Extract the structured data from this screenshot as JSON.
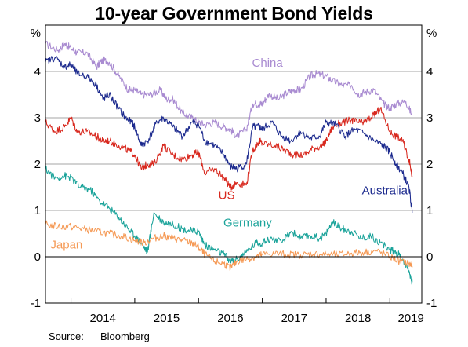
{
  "chart_data": {
    "type": "line",
    "title": "10-year Government Bond Yields",
    "ylabel_left": "%",
    "ylabel_right": "%",
    "ylim": [
      -1,
      5
    ],
    "yticks": [
      -1,
      0,
      1,
      2,
      3,
      4
    ],
    "xlim": [
      2013.6,
      2019.5
    ],
    "xticks": [
      "2014",
      "2015",
      "2016",
      "2017",
      "2018",
      "2019"
    ],
    "grid": true,
    "source_label": "Source:",
    "source": "Bloomberg",
    "series": [
      {
        "name": "China",
        "color": "#a98bd1",
        "x": [
          2013.6,
          2013.8,
          2013.9,
          2014.0,
          2014.1,
          2014.25,
          2014.4,
          2014.5,
          2014.6,
          2014.75,
          2014.9,
          2015.0,
          2015.1,
          2015.25,
          2015.4,
          2015.5,
          2015.6,
          2015.75,
          2015.9,
          2016.0,
          2016.1,
          2016.25,
          2016.4,
          2016.5,
          2016.6,
          2016.75,
          2016.85,
          2016.95,
          2017.0,
          2017.1,
          2017.25,
          2017.4,
          2017.5,
          2017.6,
          2017.75,
          2017.85,
          2018.0,
          2018.1,
          2018.25,
          2018.4,
          2018.5,
          2018.6,
          2018.75,
          2018.9,
          2019.0,
          2019.1,
          2019.25,
          2019.35
        ],
        "y": [
          4.6,
          4.45,
          4.6,
          4.5,
          4.4,
          4.4,
          4.1,
          4.25,
          4.2,
          3.9,
          3.6,
          3.6,
          3.5,
          3.5,
          3.6,
          3.4,
          3.4,
          3.1,
          3.0,
          2.9,
          2.85,
          2.9,
          2.8,
          2.75,
          2.6,
          2.75,
          3.3,
          3.3,
          3.3,
          3.5,
          3.4,
          3.55,
          3.6,
          3.6,
          3.9,
          3.95,
          3.9,
          3.8,
          3.7,
          3.7,
          3.5,
          3.55,
          3.6,
          3.3,
          3.2,
          3.3,
          3.35,
          3.05
        ]
      },
      {
        "name": "US",
        "color": "#d8281e",
        "x": [
          2013.6,
          2013.75,
          2013.9,
          2014.0,
          2014.1,
          2014.25,
          2014.4,
          2014.5,
          2014.6,
          2014.75,
          2014.9,
          2015.0,
          2015.1,
          2015.2,
          2015.3,
          2015.45,
          2015.6,
          2015.75,
          2015.9,
          2016.0,
          2016.1,
          2016.25,
          2016.4,
          2016.5,
          2016.6,
          2016.75,
          2016.85,
          2016.95,
          2017.0,
          2017.2,
          2017.35,
          2017.5,
          2017.65,
          2017.8,
          2017.95,
          2018.0,
          2018.1,
          2018.25,
          2018.4,
          2018.5,
          2018.6,
          2018.75,
          2018.85,
          2019.0,
          2019.1,
          2019.2,
          2019.3,
          2019.35
        ],
        "y": [
          2.9,
          2.7,
          2.8,
          3.0,
          2.7,
          2.7,
          2.6,
          2.5,
          2.5,
          2.4,
          2.3,
          2.2,
          1.9,
          2.0,
          2.0,
          2.4,
          2.2,
          2.1,
          2.2,
          2.25,
          1.8,
          1.9,
          1.7,
          1.5,
          1.6,
          1.55,
          2.3,
          2.5,
          2.45,
          2.4,
          2.3,
          2.2,
          2.2,
          2.35,
          2.4,
          2.5,
          2.8,
          2.9,
          2.95,
          2.9,
          2.9,
          3.05,
          3.2,
          2.7,
          2.6,
          2.5,
          2.1,
          1.75
        ]
      },
      {
        "name": "Australia",
        "color": "#1c2a8e",
        "x": [
          2013.6,
          2013.75,
          2013.9,
          2014.0,
          2014.1,
          2014.25,
          2014.4,
          2014.5,
          2014.6,
          2014.75,
          2014.85,
          2014.95,
          2015.0,
          2015.1,
          2015.2,
          2015.35,
          2015.45,
          2015.6,
          2015.75,
          2015.9,
          2016.0,
          2016.1,
          2016.25,
          2016.4,
          2016.5,
          2016.6,
          2016.75,
          2016.85,
          2016.95,
          2017.0,
          2017.15,
          2017.3,
          2017.45,
          2017.6,
          2017.75,
          2017.9,
          2018.0,
          2018.15,
          2018.3,
          2018.45,
          2018.6,
          2018.75,
          2018.9,
          2019.0,
          2019.1,
          2019.2,
          2019.3,
          2019.35
        ],
        "y": [
          4.2,
          4.3,
          4.1,
          4.15,
          3.95,
          3.9,
          3.7,
          3.4,
          3.5,
          3.2,
          3.0,
          2.9,
          2.8,
          2.4,
          2.5,
          2.9,
          3.0,
          2.8,
          2.6,
          2.9,
          2.85,
          2.5,
          2.4,
          2.2,
          1.95,
          1.9,
          2.0,
          2.8,
          2.8,
          2.75,
          2.9,
          2.6,
          2.5,
          2.7,
          2.55,
          2.6,
          2.9,
          2.85,
          2.6,
          2.75,
          2.65,
          2.5,
          2.4,
          2.25,
          2.0,
          1.8,
          1.5,
          0.95
        ]
      },
      {
        "name": "Germany",
        "color": "#1aa39a",
        "x": [
          2013.6,
          2013.75,
          2013.9,
          2014.0,
          2014.15,
          2014.3,
          2014.45,
          2014.6,
          2014.75,
          2014.9,
          2015.0,
          2015.1,
          2015.2,
          2015.3,
          2015.45,
          2015.6,
          2015.75,
          2015.9,
          2016.0,
          2016.1,
          2016.25,
          2016.4,
          2016.5,
          2016.6,
          2016.75,
          2016.9,
          2017.0,
          2017.15,
          2017.3,
          2017.45,
          2017.6,
          2017.75,
          2017.9,
          2018.0,
          2018.1,
          2018.25,
          2018.4,
          2018.55,
          2018.7,
          2018.85,
          2019.0,
          2019.1,
          2019.2,
          2019.3,
          2019.35
        ],
        "y": [
          1.9,
          1.7,
          1.75,
          1.7,
          1.5,
          1.45,
          1.2,
          1.05,
          0.85,
          0.6,
          0.45,
          0.3,
          0.1,
          0.95,
          0.75,
          0.7,
          0.6,
          0.55,
          0.55,
          0.25,
          0.15,
          0.05,
          -0.1,
          -0.05,
          0.1,
          0.3,
          0.3,
          0.4,
          0.3,
          0.55,
          0.4,
          0.45,
          0.4,
          0.5,
          0.75,
          0.6,
          0.55,
          0.4,
          0.45,
          0.3,
          0.15,
          0.1,
          -0.05,
          -0.3,
          -0.55
        ]
      },
      {
        "name": "Japan",
        "color": "#f59a56",
        "x": [
          2013.6,
          2013.8,
          2014.0,
          2014.2,
          2014.4,
          2014.6,
          2014.8,
          2015.0,
          2015.15,
          2015.3,
          2015.45,
          2015.6,
          2015.75,
          2015.9,
          2016.0,
          2016.1,
          2016.25,
          2016.4,
          2016.5,
          2016.6,
          2016.75,
          2016.9,
          2017.0,
          2017.2,
          2017.4,
          2017.6,
          2017.8,
          2018.0,
          2018.2,
          2018.4,
          2018.6,
          2018.8,
          2019.0,
          2019.15,
          2019.3,
          2019.35
        ],
        "y": [
          0.7,
          0.65,
          0.65,
          0.6,
          0.55,
          0.5,
          0.45,
          0.35,
          0.3,
          0.4,
          0.45,
          0.4,
          0.35,
          0.3,
          0.2,
          0.05,
          -0.1,
          -0.15,
          -0.25,
          -0.1,
          -0.05,
          0.0,
          0.05,
          0.07,
          0.05,
          0.04,
          0.06,
          0.05,
          0.04,
          0.08,
          0.1,
          0.12,
          0.0,
          -0.1,
          -0.15,
          -0.2
        ]
      }
    ]
  }
}
